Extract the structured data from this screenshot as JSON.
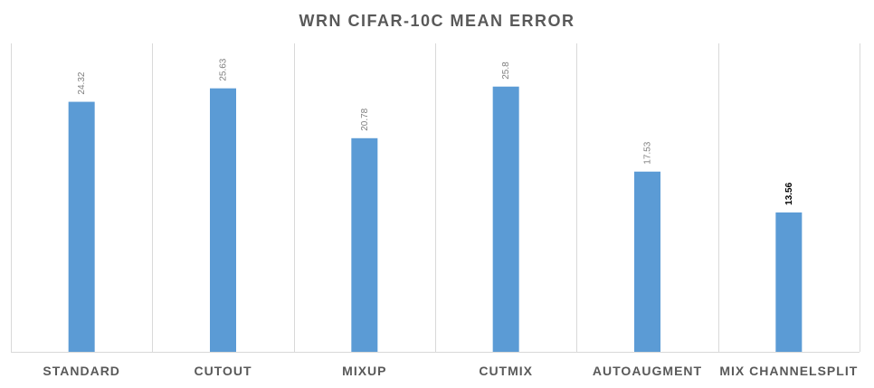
{
  "chart_data": {
    "type": "bar",
    "title": "WRN CIFAR-10C MEAN ERROR",
    "categories": [
      "STANDARD",
      "CUTOUT",
      "MIXUP",
      "CUTMIX",
      "AUTOAUGMENT",
      "MIX CHANNELSPLIT"
    ],
    "series": [
      {
        "values": [
          24.32,
          25.63,
          20.78,
          25.8,
          17.53,
          13.56
        ]
      }
    ],
    "data_labels": [
      "24.32",
      "25.63",
      "20.78",
      "25.8",
      "17.53",
      "13.56"
    ],
    "highlighted_label_index": 5,
    "bar_color": "#5b9bd5",
    "ylim": [
      0,
      30
    ],
    "xlabel": "",
    "ylabel": "",
    "grid": "vertical category separators",
    "legend": "none"
  }
}
